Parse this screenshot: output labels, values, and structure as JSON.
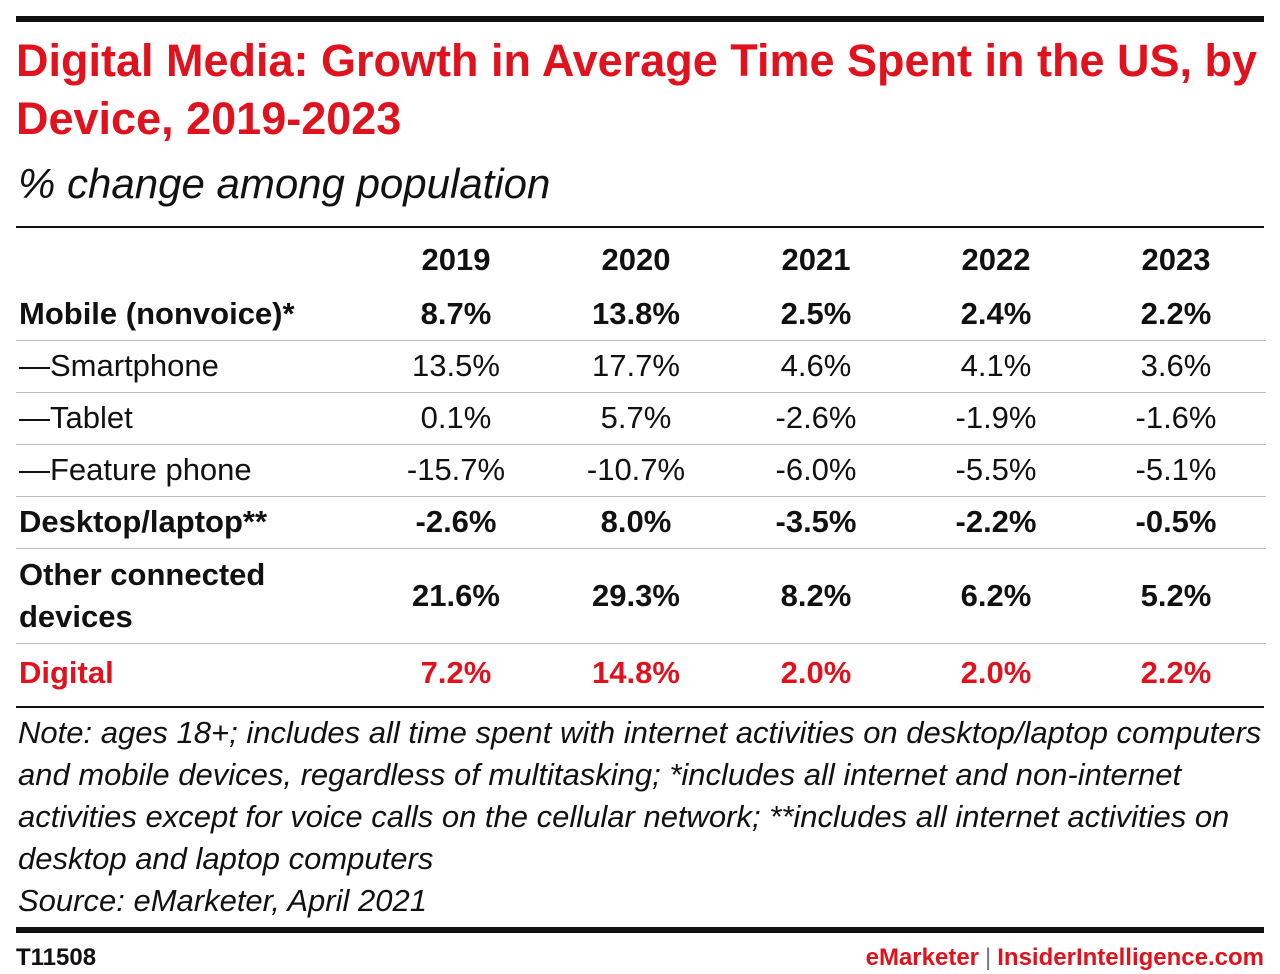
{
  "chart_data": {
    "type": "table",
    "title": "Digital Media: Growth in Average Time Spent in the US, by Device, 2019-2023",
    "subtitle": "% change among population",
    "columns": [
      "2019",
      "2020",
      "2021",
      "2022",
      "2023"
    ],
    "rows": [
      {
        "label": "Mobile (nonvoice)*",
        "values": [
          "8.7%",
          "13.8%",
          "2.5%",
          "2.4%",
          "2.2%"
        ]
      },
      {
        "label": "—Smartphone",
        "values": [
          "13.5%",
          "17.7%",
          "4.6%",
          "4.1%",
          "3.6%"
        ]
      },
      {
        "label": "—Tablet",
        "values": [
          "0.1%",
          "5.7%",
          "-2.6%",
          "-1.9%",
          "-1.6%"
        ]
      },
      {
        "label": "—Feature phone",
        "values": [
          "-15.7%",
          "-10.7%",
          "-6.0%",
          "-5.5%",
          "-5.1%"
        ]
      },
      {
        "label": "Desktop/laptop**",
        "values": [
          "-2.6%",
          "8.0%",
          "-3.5%",
          "-2.2%",
          "-0.5%"
        ]
      },
      {
        "label": "Other connected devices",
        "values": [
          "21.6%",
          "29.3%",
          "8.2%",
          "6.2%",
          "5.2%"
        ]
      },
      {
        "label": "Digital",
        "values": [
          "7.2%",
          "14.8%",
          "2.0%",
          "2.0%",
          "2.2%"
        ]
      }
    ]
  },
  "notes": {
    "note": "Note: ages 18+; includes all time spent with internet activities on desktop/laptop computers and mobile devices, regardless of multitasking; *includes all internet and non-internet activities except for voice calls on the cellular network; **includes all internet activities on desktop and laptop computers",
    "source": "Source: eMarketer, April 2021"
  },
  "footer": {
    "id": "T11508",
    "brand_a": "eMarketer",
    "separator": "|",
    "brand_b": "InsiderIntelligence.com"
  },
  "colors": {
    "accent": "#e0121d",
    "text": "#111111",
    "separator": "#777777"
  }
}
